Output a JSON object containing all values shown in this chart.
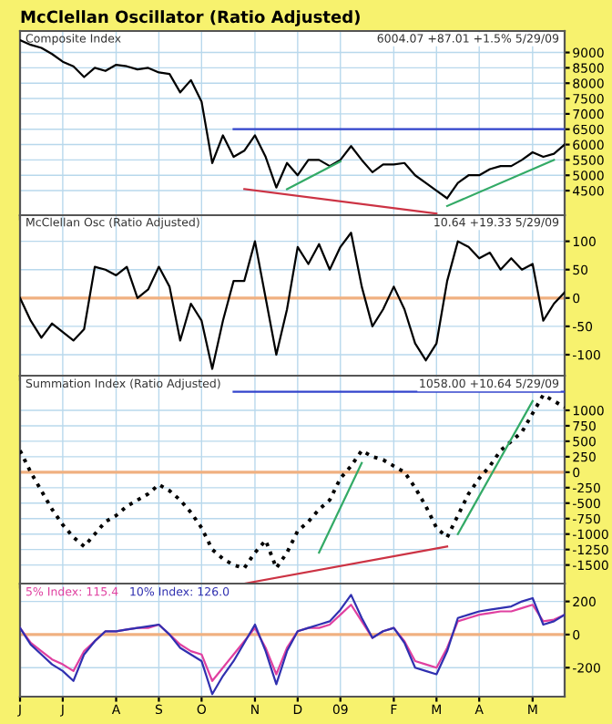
{
  "chart_data": [
    {
      "type": "line",
      "title": "McClellan Oscillator (Ratio Adjusted)",
      "subtitle": "Composite Index",
      "annotations": [
        "6004.07 +87.01 +1.5% 5/29/09"
      ],
      "ylim": [
        3700,
        9700
      ],
      "yticks": [
        4500,
        5000,
        5500,
        6000,
        6500,
        7000,
        7500,
        8000,
        8500,
        9000
      ],
      "tick_labels": "y",
      "grid": true,
      "series": [
        {
          "color": "#000000",
          "values": [
            9400,
            9250,
            9150,
            8950,
            8700,
            8550,
            8200,
            8500,
            8400,
            8600,
            8550,
            8450,
            8500,
            8350,
            8300,
            7700,
            8100,
            7400,
            5400,
            6300,
            5600,
            5800,
            6300,
            5600,
            4600,
            5400,
            5000,
            5500,
            5500,
            5300,
            5500,
            5950,
            5500,
            5100,
            5350,
            5350,
            5400,
            5000,
            4750,
            4500,
            4250,
            4750,
            5000,
            5000,
            5200,
            5300,
            5300,
            5500,
            5750,
            5600,
            5700,
            6000
          ]
        },
        {
          "color": "#3344cc",
          "values": [
            null,
            null,
            null,
            null,
            null,
            null,
            null,
            null,
            null,
            null,
            null,
            null,
            null,
            null,
            null,
            null,
            null,
            null,
            null,
            null,
            6500,
            null,
            null,
            null,
            null,
            null,
            null,
            null,
            null,
            null,
            null,
            null,
            null,
            null,
            null,
            null,
            null,
            null,
            null,
            null,
            null,
            null,
            null,
            null,
            null,
            null,
            null,
            null,
            null,
            null,
            null,
            6500
          ]
        },
        {
          "color": "#33aa66",
          "values": [
            null,
            null,
            null,
            null,
            null,
            null,
            null,
            null,
            null,
            null,
            null,
            null,
            null,
            null,
            null,
            null,
            null,
            null,
            null,
            null,
            null,
            null,
            null,
            null,
            null,
            4550,
            null,
            null,
            null,
            null,
            5450,
            null,
            null,
            null,
            null,
            null,
            null,
            null,
            null,
            null,
            null,
            null,
            null,
            null,
            null,
            null,
            null,
            null,
            null,
            null,
            null,
            null
          ]
        },
        {
          "color": "#33aa66",
          "values": [
            null,
            null,
            null,
            null,
            null,
            null,
            null,
            null,
            null,
            null,
            null,
            null,
            null,
            null,
            null,
            null,
            null,
            null,
            null,
            null,
            null,
            null,
            null,
            null,
            null,
            null,
            null,
            null,
            null,
            null,
            null,
            null,
            null,
            null,
            null,
            null,
            null,
            null,
            null,
            null,
            4000,
            null,
            null,
            null,
            null,
            null,
            null,
            null,
            null,
            null,
            5500,
            null
          ]
        },
        {
          "color": "#cc3344",
          "values": [
            null,
            null,
            null,
            null,
            null,
            null,
            null,
            null,
            null,
            null,
            null,
            null,
            null,
            null,
            null,
            null,
            null,
            null,
            null,
            null,
            null,
            4550,
            null,
            null,
            null,
            null,
            null,
            null,
            null,
            null,
            null,
            null,
            null,
            null,
            null,
            null,
            null,
            null,
            null,
            3750,
            null,
            null,
            null,
            null,
            null,
            null,
            null,
            null,
            null,
            null,
            null,
            null
          ]
        }
      ]
    },
    {
      "type": "line",
      "subtitle": "McClellan Osc (Ratio Adjusted)",
      "annotations": [
        "10.64 +19.33 5/29/09"
      ],
      "ylim": [
        -137,
        146
      ],
      "yticks": [
        -100,
        -50,
        0,
        50,
        100
      ],
      "tick_labels": "y",
      "grid": true,
      "ref_lines": [
        {
          "axis": "y",
          "value": 0,
          "color": "#f0b080"
        }
      ],
      "series": [
        {
          "color": "#000000",
          "values": [
            0,
            -40,
            -70,
            -45,
            -60,
            -75,
            -55,
            55,
            50,
            40,
            55,
            0,
            15,
            55,
            20,
            -75,
            -10,
            -40,
            -125,
            -40,
            30,
            30,
            100,
            0,
            -100,
            -20,
            90,
            60,
            95,
            50,
            90,
            115,
            20,
            -50,
            -20,
            20,
            -20,
            -80,
            -110,
            -80,
            30,
            100,
            90,
            70,
            80,
            50,
            70,
            50,
            60,
            -40,
            -10,
            10
          ]
        }
      ]
    },
    {
      "type": "line",
      "subtitle": "Summation Index (Ratio Adjusted)",
      "annotations": [
        "1058.00 +10.64 5/29/09"
      ],
      "ylim": [
        -1800,
        1560
      ],
      "yticks": [
        -1500,
        -1250,
        -1000,
        -750,
        -500,
        -250,
        0,
        250,
        500,
        750,
        1000
      ],
      "tick_labels": "y",
      "grid": true,
      "ref_lines": [
        {
          "axis": "y",
          "value": 0,
          "color": "#f0b080"
        }
      ],
      "series": [
        {
          "color": "#000000",
          "line_style": "dotted",
          "values": [
            350,
            0,
            -300,
            -600,
            -850,
            -1050,
            -1200,
            -1000,
            -800,
            -700,
            -550,
            -450,
            -350,
            -200,
            -300,
            -450,
            -650,
            -900,
            -1250,
            -1400,
            -1500,
            -1550,
            -1300,
            -1100,
            -1550,
            -1300,
            -950,
            -800,
            -600,
            -450,
            -100,
            100,
            350,
            250,
            200,
            100,
            0,
            -250,
            -550,
            -900,
            -1050,
            -700,
            -350,
            -100,
            100,
            350,
            500,
            650,
            950,
            1250,
            1150,
            1050
          ]
        },
        {
          "color": "#3344cc",
          "values": [
            null,
            null,
            null,
            null,
            null,
            null,
            null,
            null,
            null,
            null,
            null,
            null,
            null,
            null,
            null,
            null,
            null,
            null,
            null,
            null,
            1300,
            null,
            null,
            null,
            null,
            null,
            null,
            null,
            null,
            null,
            null,
            null,
            null,
            null,
            null,
            null,
            null,
            null,
            null,
            null,
            null,
            null,
            null,
            null,
            null,
            null,
            null,
            null,
            null,
            null,
            null,
            1300
          ]
        },
        {
          "color": "#33aa66",
          "values": [
            null,
            null,
            null,
            null,
            null,
            null,
            null,
            null,
            null,
            null,
            null,
            null,
            null,
            null,
            null,
            null,
            null,
            null,
            null,
            null,
            null,
            null,
            null,
            null,
            null,
            null,
            null,
            null,
            -1300,
            null,
            null,
            null,
            150,
            null,
            null,
            null,
            null,
            null,
            null,
            null,
            null,
            null,
            null,
            null,
            null,
            null,
            null,
            null,
            null,
            null,
            null,
            null
          ]
        },
        {
          "color": "#33aa66",
          "values": [
            null,
            null,
            null,
            null,
            null,
            null,
            null,
            null,
            null,
            null,
            null,
            null,
            null,
            null,
            null,
            null,
            null,
            null,
            null,
            null,
            null,
            null,
            null,
            null,
            null,
            null,
            null,
            null,
            null,
            null,
            null,
            null,
            null,
            null,
            null,
            null,
            null,
            null,
            null,
            null,
            null,
            -1000,
            null,
            null,
            null,
            null,
            null,
            null,
            1150,
            null,
            null,
            null
          ]
        },
        {
          "color": "#cc3344",
          "values": [
            null,
            null,
            null,
            null,
            null,
            null,
            null,
            null,
            null,
            null,
            null,
            null,
            null,
            null,
            null,
            null,
            null,
            null,
            null,
            null,
            null,
            -1800,
            null,
            null,
            null,
            null,
            null,
            null,
            null,
            null,
            null,
            null,
            null,
            null,
            null,
            null,
            null,
            null,
            null,
            null,
            -1200,
            null,
            null,
            null,
            null,
            null,
            null,
            null,
            null,
            null,
            null,
            null
          ]
        }
      ]
    },
    {
      "type": "line",
      "legend": "top left",
      "categories": [
        "J",
        null,
        null,
        null,
        "J",
        null,
        null,
        null,
        null,
        "A",
        null,
        null,
        null,
        "S",
        null,
        null,
        null,
        "O",
        null,
        null,
        null,
        null,
        "N",
        null,
        null,
        null,
        "D",
        null,
        null,
        null,
        "09",
        null,
        null,
        null,
        null,
        "F",
        null,
        null,
        null,
        "M",
        null,
        null,
        null,
        "A",
        null,
        null,
        null,
        null,
        "M",
        null,
        null,
        null
      ],
      "ylim": [
        -375,
        308
      ],
      "yticks": [
        -200,
        0,
        200
      ],
      "grid": true,
      "ref_lines": [
        {
          "axis": "y",
          "value": 0,
          "color": "#f0b080"
        }
      ],
      "series": [
        {
          "name": "5% Index: 115.4",
          "color": "#e040a0",
          "values": [
            40,
            -50,
            -100,
            -150,
            -180,
            -220,
            -100,
            -40,
            20,
            20,
            30,
            40,
            40,
            60,
            0,
            -60,
            -100,
            -120,
            -280,
            -200,
            -120,
            -40,
            40,
            -80,
            -240,
            -80,
            20,
            40,
            40,
            60,
            120,
            180,
            80,
            -20,
            20,
            40,
            -40,
            -160,
            -180,
            -200,
            -80,
            80,
            100,
            120,
            130,
            140,
            140,
            160,
            180,
            80,
            90,
            120
          ]
        },
        {
          "name": "10% Index: 126.0",
          "color": "#3030b0",
          "values": [
            40,
            -60,
            -120,
            -180,
            -220,
            -280,
            -120,
            -40,
            20,
            20,
            30,
            40,
            50,
            60,
            0,
            -80,
            -120,
            -160,
            -360,
            -250,
            -160,
            -50,
            60,
            -100,
            -300,
            -100,
            20,
            40,
            60,
            80,
            150,
            240,
            100,
            -20,
            20,
            40,
            -50,
            -200,
            -220,
            -240,
            -100,
            100,
            120,
            140,
            150,
            160,
            170,
            200,
            220,
            60,
            80,
            120
          ]
        }
      ]
    }
  ]
}
